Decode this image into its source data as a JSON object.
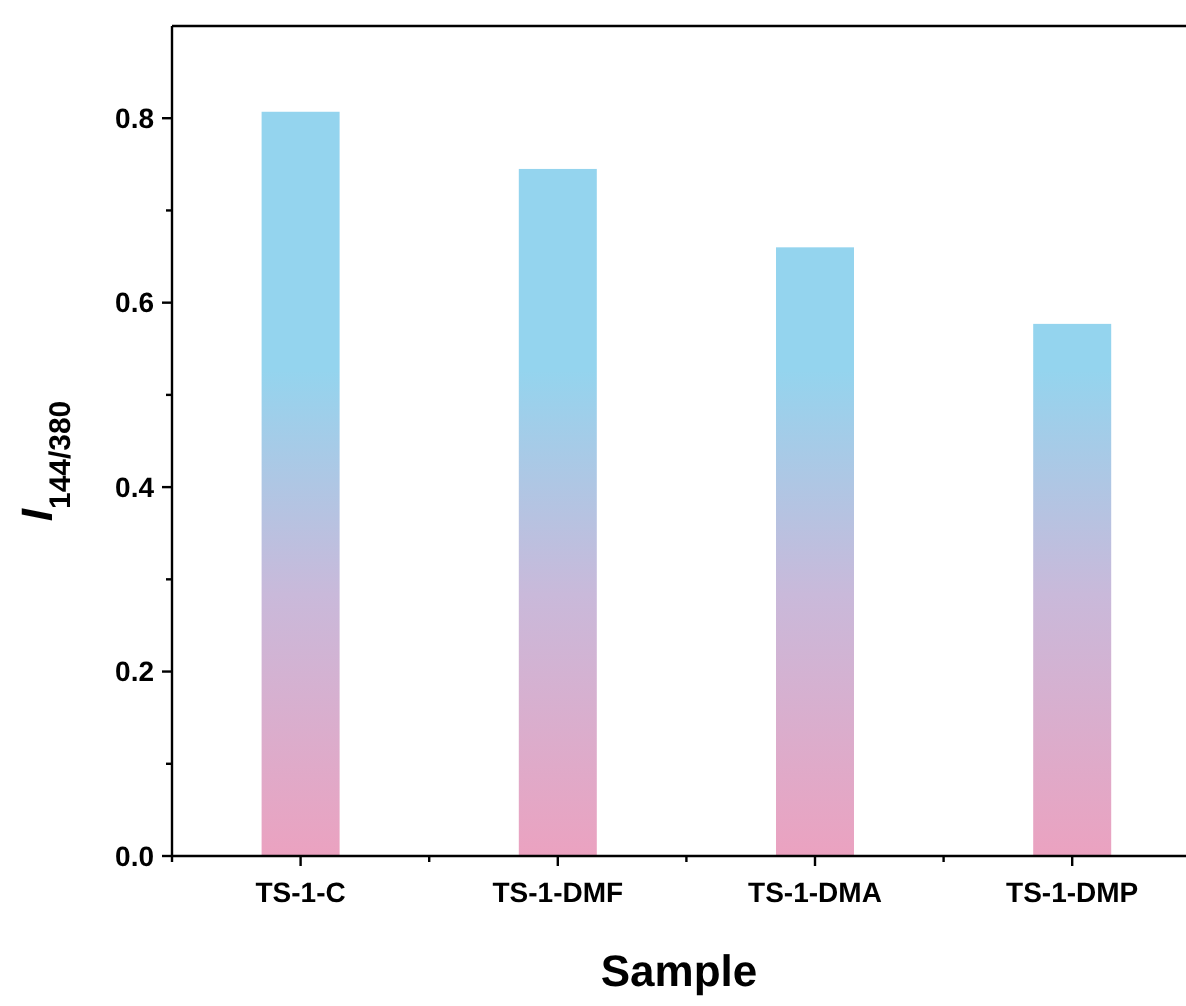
{
  "chart_data": {
    "type": "bar",
    "xlabel": "Sample",
    "ylabel": "I$_{144/380}$",
    "categories": [
      "TS-1-C",
      "TS-1-DMF",
      "TS-1-DMA",
      "TS-1-DMP"
    ],
    "values": [
      0.807,
      0.745,
      0.66,
      0.577
    ],
    "color": "#94d4ee",
    "ylim": [
      0,
      0.9
    ],
    "yticks": [
      {
        "value": 0,
        "label": "0.0"
      },
      {
        "value": 0.1,
        "label": null
      },
      {
        "value": 0.2,
        "label": "0.2"
      },
      {
        "value": 0.3,
        "label": null
      },
      {
        "value": 0.4,
        "label": "0.4"
      },
      {
        "value": 0.5,
        "label": null
      },
      {
        "value": 0.6,
        "label": "0.6"
      },
      {
        "value": 0.7,
        "label": null
      },
      {
        "value": 0.8,
        "label": "0.8"
      }
    ],
    "grid": false
  }
}
